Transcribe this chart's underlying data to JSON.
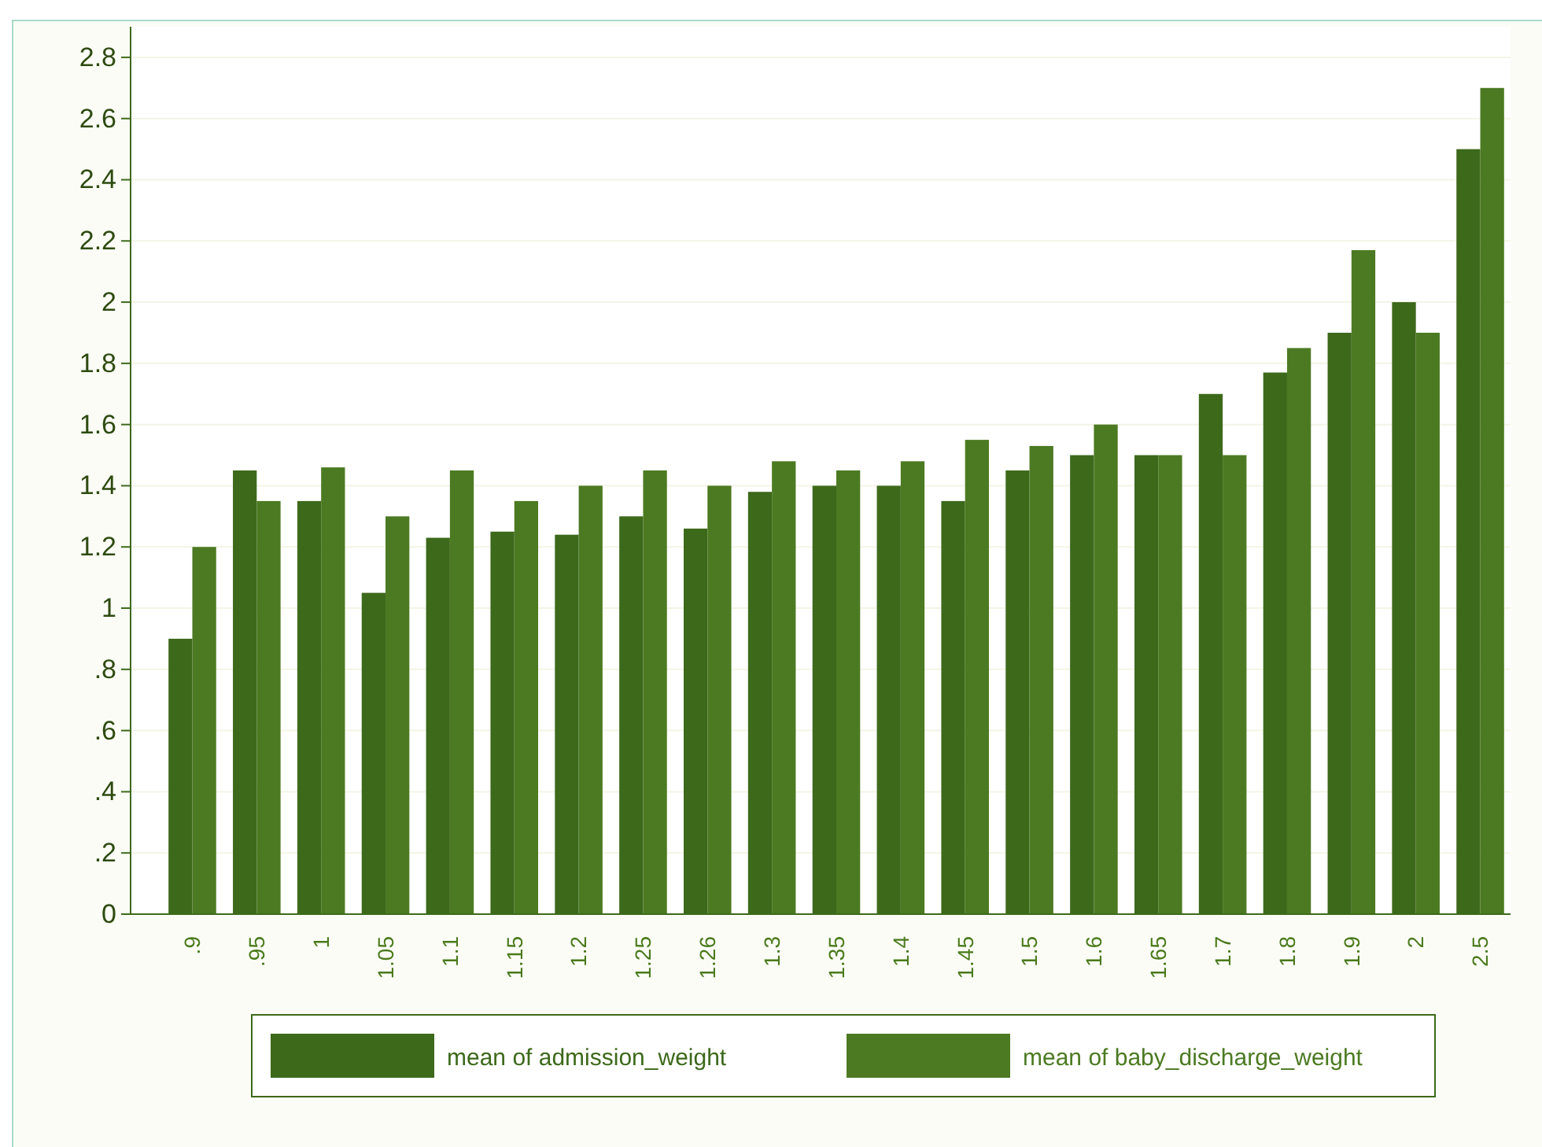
{
  "chart_data": {
    "type": "bar",
    "categories": [
      ".9",
      ".95",
      "1",
      "1.05",
      "1.1",
      "1.15",
      "1.2",
      "1.25",
      "1.26",
      "1.3",
      "1.35",
      "1.4",
      "1.45",
      "1.5",
      "1.6",
      "1.65",
      "1.7",
      "1.8",
      "1.9",
      "2",
      "2.5"
    ],
    "series": [
      {
        "name": "mean of admission_weight",
        "color": "#3d691b",
        "values": [
          0.9,
          1.45,
          1.35,
          1.05,
          1.23,
          1.25,
          1.24,
          1.3,
          1.26,
          1.38,
          1.4,
          1.4,
          1.35,
          1.45,
          1.5,
          1.5,
          1.7,
          1.77,
          1.9,
          2.0,
          2.5
        ]
      },
      {
        "name": "mean of baby_discharge_weight",
        "color": "#4c7a22",
        "values": [
          1.2,
          1.35,
          1.46,
          1.3,
          1.45,
          1.35,
          1.4,
          1.45,
          1.4,
          1.48,
          1.45,
          1.48,
          1.55,
          1.53,
          1.6,
          1.5,
          1.5,
          1.85,
          2.17,
          1.9,
          2.7
        ]
      }
    ],
    "ylim": [
      0,
      2.9
    ],
    "yticks": [
      0,
      {
        "value": 0.2,
        "label": ".2"
      },
      {
        "value": 0.4,
        "label": ".4"
      },
      {
        "value": 0.6,
        "label": ".6"
      },
      {
        "value": 0.8,
        "label": ".8"
      },
      1,
      1.2,
      1.4,
      1.6,
      1.8,
      2,
      2.2,
      2.4,
      2.6,
      2.8
    ],
    "grid": "y",
    "legend": "bottom"
  }
}
